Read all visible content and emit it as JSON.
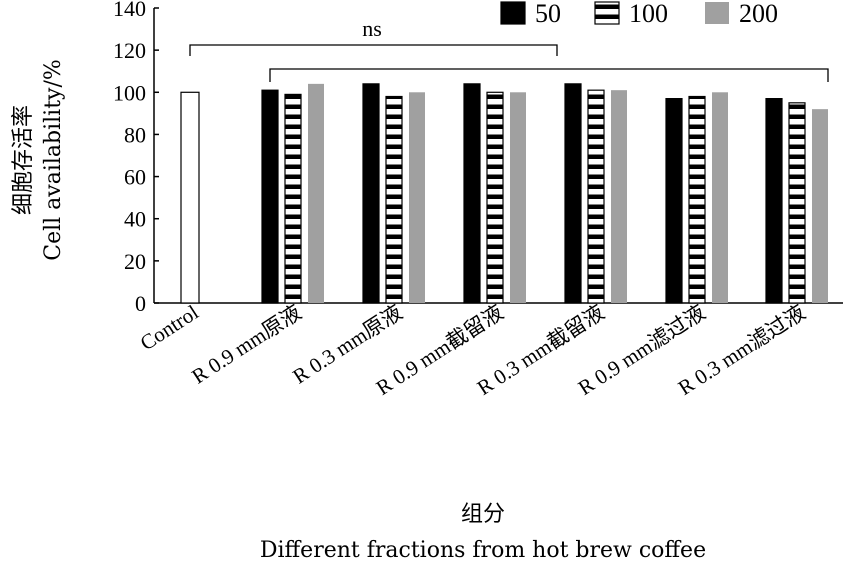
{
  "chart_data": {
    "type": "bar",
    "categories": [
      "Control",
      "R 0.9 mm原液",
      "R 0.3 mm原液",
      "R 0.9 mm截留液",
      "R 0.3 mm截留液",
      "R 0.9 mm滤过液",
      "R 0.3 mm滤过液"
    ],
    "series": [
      {
        "name": "50",
        "values": [
          null,
          101,
          104,
          104,
          104,
          97,
          97
        ]
      },
      {
        "name": "100",
        "values": [
          100,
          99,
          98,
          100,
          101,
          98,
          95
        ]
      },
      {
        "name": "200",
        "values": [
          null,
          104,
          100,
          100,
          101,
          100,
          92
        ]
      }
    ],
    "control_series_index": 1,
    "ylabel_cn": "细胞存活率",
    "ylabel_en": "Cell availability/%",
    "xlabel_cn": "组分",
    "xlabel_en": "Different fractions from hot brew coffee",
    "ylim": [
      0,
      140
    ],
    "yticks": [
      0,
      20,
      40,
      60,
      80,
      100,
      120,
      140
    ],
    "legend_position": "top-right",
    "grid": false,
    "significance": {
      "label": "ns"
    },
    "colors": {
      "50": "#000000",
      "100": "#ffffff",
      "200": "#a0a0a0"
    }
  }
}
